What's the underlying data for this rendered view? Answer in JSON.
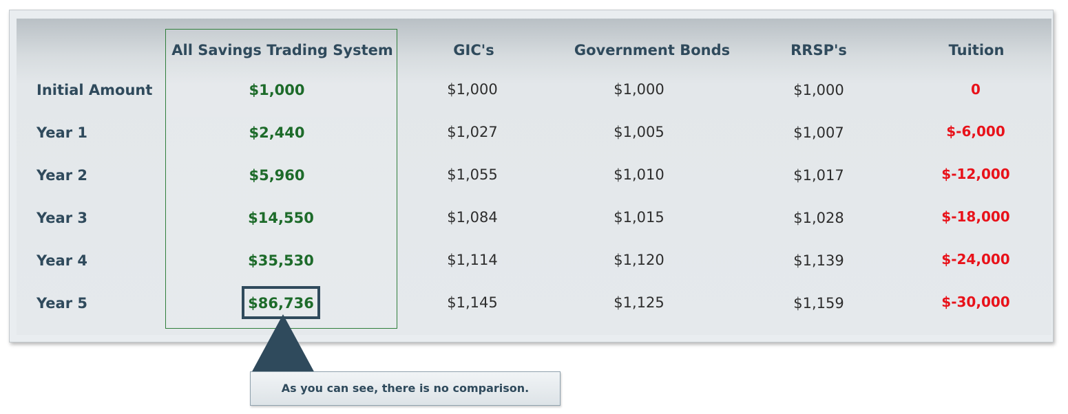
{
  "table": {
    "headers": [
      "All Savings Trading System",
      "GIC's",
      "Government Bonds",
      "RRSP's",
      "Tuition"
    ],
    "rows": [
      {
        "label": "Initial Amount",
        "values": [
          "$1,000",
          "$1,000",
          "$1,000",
          "$1,000",
          "0"
        ]
      },
      {
        "label": "Year 1",
        "values": [
          "$2,440",
          "$1,027",
          "$1,005",
          "$1,007",
          "$-6,000"
        ]
      },
      {
        "label": "Year 2",
        "values": [
          "$5,960",
          "$1,055",
          "$1,010",
          "$1,017",
          "$-12,000"
        ]
      },
      {
        "label": "Year 3",
        "values": [
          "$14,550",
          "$1,084",
          "$1,015",
          "$1,028",
          "$-18,000"
        ]
      },
      {
        "label": "Year 4",
        "values": [
          "$35,530",
          "$1,114",
          "$1,120",
          "$1,139",
          "$-24,000"
        ]
      },
      {
        "label": "Year 5",
        "values": [
          "$86,736",
          "$1,145",
          "$1,125",
          "$1,159",
          "$-30,000"
        ]
      }
    ]
  },
  "callout": {
    "text": "As you can see, there is no comparison."
  },
  "colors": {
    "label_text": "#2f4a5c",
    "highlight_value": "#1d6b2a",
    "negative_value": "#e8121a",
    "highlight_border": "#2e7d3a"
  }
}
